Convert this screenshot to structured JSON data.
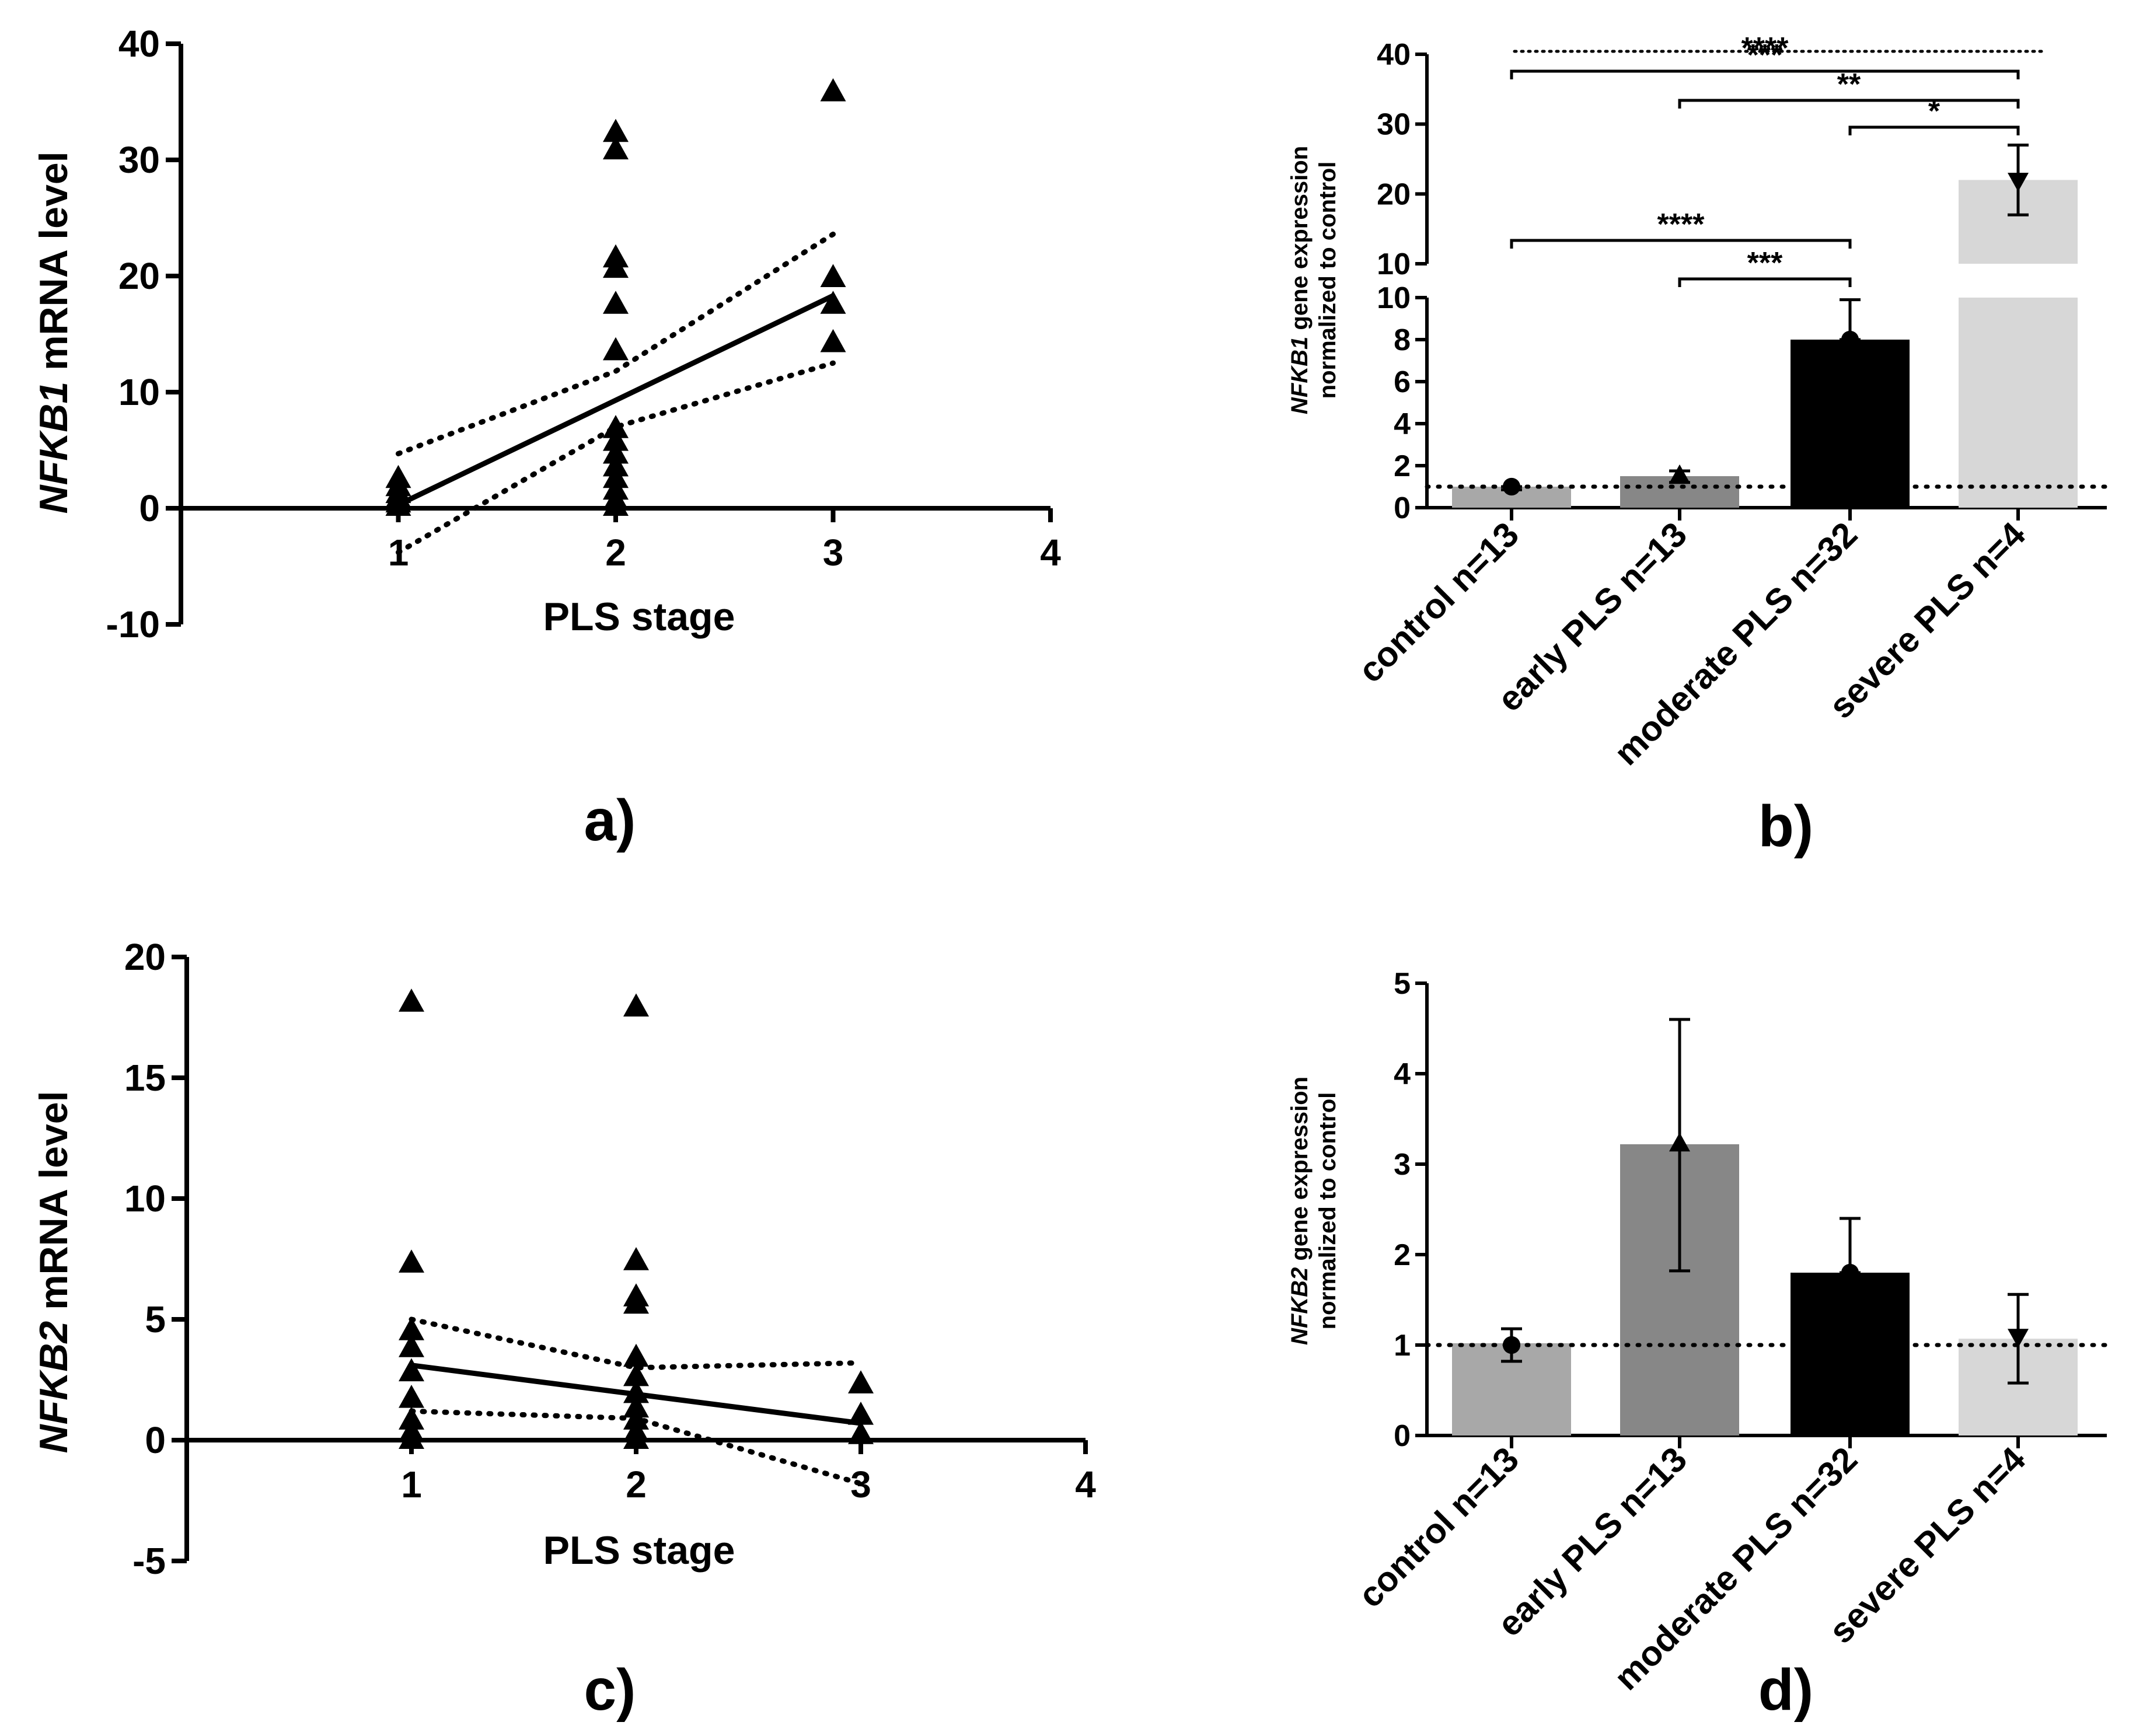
{
  "chart_data": [
    {
      "panel": "a)",
      "type": "scatter",
      "xlabel": "PLS stage",
      "ylabel_italic": "NFKB1",
      "ylabel_rest": " mRNA level",
      "xlim": [
        0,
        4
      ],
      "ylim": [
        -10,
        40
      ],
      "xticks": [
        1,
        2,
        3,
        4
      ],
      "yticks": [
        -10,
        0,
        10,
        20,
        30,
        40
      ],
      "marker": "triangle-up",
      "points": [
        {
          "x": 1,
          "y": 2.5
        },
        {
          "x": 1,
          "y": 1.8
        },
        {
          "x": 1,
          "y": 1.2
        },
        {
          "x": 1,
          "y": 0.8
        },
        {
          "x": 1,
          "y": 0.4
        },
        {
          "x": 1,
          "y": 0.1
        },
        {
          "x": 2,
          "y": 32.3
        },
        {
          "x": 2,
          "y": 30.8
        },
        {
          "x": 2,
          "y": 21.5
        },
        {
          "x": 2,
          "y": 20.6
        },
        {
          "x": 2,
          "y": 17.5
        },
        {
          "x": 2,
          "y": 13.5
        },
        {
          "x": 2,
          "y": 6.8
        },
        {
          "x": 2,
          "y": 5.7
        },
        {
          "x": 2,
          "y": 4.6
        },
        {
          "x": 2,
          "y": 3.5
        },
        {
          "x": 2,
          "y": 2.5
        },
        {
          "x": 2,
          "y": 1.5
        },
        {
          "x": 2,
          "y": 0.6
        },
        {
          "x": 2,
          "y": 0.1
        },
        {
          "x": 3,
          "y": 35.8
        },
        {
          "x": 3,
          "y": 19.8
        },
        {
          "x": 3,
          "y": 17.5
        },
        {
          "x": 3,
          "y": 14.2
        }
      ],
      "fit": {
        "x1": 1,
        "y1": 0.3,
        "x2": 3,
        "y2": 18.3
      },
      "ci_upper": [
        [
          1,
          4.7
        ],
        [
          2,
          11.8
        ],
        [
          3,
          23.6
        ]
      ],
      "ci_lower": [
        [
          1,
          -3.8
        ],
        [
          2,
          7.0
        ],
        [
          3,
          12.5
        ]
      ]
    },
    {
      "panel": "b)",
      "type": "bar",
      "ylabel_italic": "NFKB1",
      "ylabel_rest": " gene expression",
      "ylabel_line2": "normalized to control",
      "categories": [
        "control n=13",
        "early PLS n=13",
        "moderate PLS n=32",
        "severe PLS n=4"
      ],
      "values": [
        1.0,
        1.5,
        8.0,
        22.0
      ],
      "error_upper": [
        1.0,
        1.75,
        9.9,
        27.0
      ],
      "error_lower": [
        0.85,
        1.2,
        8.0,
        17.0
      ],
      "markers": [
        "circle",
        "triangle-up",
        "circle",
        "triangle-down"
      ],
      "colors": [
        "#a8a8a8",
        "#878787",
        "#000000",
        "#d7d7d7"
      ],
      "ylim_lower": [
        0,
        10
      ],
      "ylim_upper": [
        10,
        40
      ],
      "yticks_lower": [
        0,
        2,
        4,
        6,
        8,
        10
      ],
      "yticks_upper": [
        10,
        20,
        30,
        40
      ],
      "reference_line": 1,
      "significance": [
        {
          "from": 0,
          "to": 3,
          "label": "****",
          "level": "top-dotted"
        },
        {
          "from": 0,
          "to": 3,
          "label": "***"
        },
        {
          "from": 1,
          "to": 3,
          "label": "**"
        },
        {
          "from": 2,
          "to": 3,
          "label": "*"
        },
        {
          "from": 0,
          "to": 2,
          "label": "****"
        },
        {
          "from": 1,
          "to": 2,
          "label": "***"
        }
      ]
    },
    {
      "panel": "c)",
      "type": "scatter",
      "xlabel": "PLS stage",
      "ylabel_italic": "NFKB2",
      "ylabel_rest": " mRNA level",
      "xlim": [
        0,
        4
      ],
      "ylim": [
        -5,
        20
      ],
      "xticks": [
        1,
        2,
        3,
        4
      ],
      "yticks": [
        -5,
        0,
        5,
        10,
        15,
        20
      ],
      "marker": "triangle-up",
      "points": [
        {
          "x": 1,
          "y": 18.1
        },
        {
          "x": 1,
          "y": 7.3
        },
        {
          "x": 1,
          "y": 4.5
        },
        {
          "x": 1,
          "y": 3.8
        },
        {
          "x": 1,
          "y": 2.8
        },
        {
          "x": 1,
          "y": 1.7
        },
        {
          "x": 1,
          "y": 0.8
        },
        {
          "x": 1,
          "y": 0.3
        },
        {
          "x": 1,
          "y": 0.0
        },
        {
          "x": 2,
          "y": 17.9
        },
        {
          "x": 2,
          "y": 7.4
        },
        {
          "x": 2,
          "y": 5.9
        },
        {
          "x": 2,
          "y": 5.6
        },
        {
          "x": 2,
          "y": 3.4
        },
        {
          "x": 2,
          "y": 2.6
        },
        {
          "x": 2,
          "y": 1.9
        },
        {
          "x": 2,
          "y": 1.3
        },
        {
          "x": 2,
          "y": 0.8
        },
        {
          "x": 2,
          "y": 0.3
        },
        {
          "x": 2,
          "y": 0.0
        },
        {
          "x": 3,
          "y": 2.3
        },
        {
          "x": 3,
          "y": 1.0
        },
        {
          "x": 3,
          "y": 0.2
        }
      ],
      "fit": {
        "x1": 1,
        "y1": 3.1,
        "x2": 3,
        "y2": 0.7
      },
      "ci_upper": [
        [
          1,
          5.0
        ],
        [
          2,
          3.0
        ],
        [
          3,
          3.2
        ]
      ],
      "ci_lower": [
        [
          1,
          1.2
        ],
        [
          2,
          0.9
        ],
        [
          3,
          -1.8
        ]
      ]
    },
    {
      "panel": "d)",
      "type": "bar",
      "ylabel_italic": "NFKB2",
      "ylabel_rest": " gene expression",
      "ylabel_line2": "normalized to control",
      "categories": [
        "control n=13",
        "early PLS n=13",
        "moderate PLS n=32",
        "severe PLS n=4"
      ],
      "values": [
        1.02,
        3.22,
        1.8,
        1.07
      ],
      "points": [
        1.0,
        3.22,
        1.8,
        1.1
      ],
      "error_upper": [
        1.18,
        4.6,
        2.4,
        1.56
      ],
      "error_lower": [
        0.82,
        1.82,
        1.8,
        0.58
      ],
      "markers": [
        "circle",
        "triangle-up",
        "circle",
        "triangle-down"
      ],
      "colors": [
        "#a8a8a8",
        "#878787",
        "#000000",
        "#d7d7d7"
      ],
      "ylim": [
        0,
        5
      ],
      "yticks": [
        0,
        1,
        2,
        3,
        4,
        5
      ],
      "reference_line": 1
    }
  ]
}
